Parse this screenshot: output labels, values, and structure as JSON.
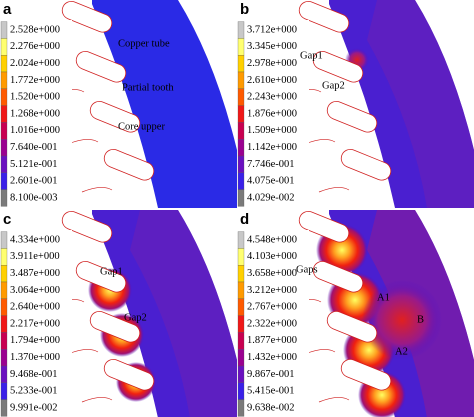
{
  "panels": [
    {
      "label": "a",
      "legend": [
        "2.528e+000",
        "2.276e+000",
        "2.024e+000",
        "1.772e+000",
        "1.520e+000",
        "1.268e+000",
        "1.016e+000",
        "7.640e-001",
        "5.121e-001",
        "2.601e-001",
        "8.100e-003"
      ],
      "annotations": [
        "Copper tube",
        "Partial tooth",
        "Core upper"
      ]
    },
    {
      "label": "b",
      "legend": [
        "3.712e+000",
        "3.345e+000",
        "2.978e+000",
        "2.610e+000",
        "2.243e+000",
        "1.876e+000",
        "1.509e+000",
        "1.142e+000",
        "7.746e-001",
        "4.075e-001",
        "4.029e-002"
      ],
      "annotations": [
        "Gap1",
        "Gap2"
      ]
    },
    {
      "label": "c",
      "legend": [
        "4.334e+000",
        "3.911e+000",
        "3.487e+000",
        "3.064e+000",
        "2.640e+000",
        "2.217e+000",
        "1.794e+000",
        "1.370e+000",
        "9.468e-001",
        "5.233e-001",
        "9.991e-002"
      ],
      "annotations": [
        "Gap1",
        "Gap2"
      ]
    },
    {
      "label": "d",
      "legend": [
        "4.548e+000",
        "4.103e+000",
        "3.658e+000",
        "3.212e+000",
        "2.767e+000",
        "2.322e+000",
        "1.877e+000",
        "1.432e+000",
        "9.867e-001",
        "5.415e-001",
        "9.638e-002"
      ],
      "annotations": [
        "Gaps",
        "A1",
        "B",
        "A2"
      ]
    }
  ]
}
